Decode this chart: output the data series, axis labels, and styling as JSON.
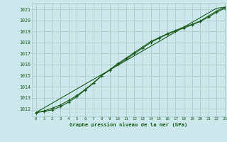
{
  "title": "Graphe pression niveau de la mer (hPa)",
  "xlim": [
    -0.5,
    23
  ],
  "ylim": [
    1011.3,
    1021.6
  ],
  "xticks": [
    0,
    1,
    2,
    3,
    4,
    5,
    6,
    7,
    8,
    9,
    10,
    11,
    12,
    13,
    14,
    15,
    16,
    17,
    18,
    19,
    20,
    21,
    22,
    23
  ],
  "yticks": [
    1012,
    1013,
    1014,
    1015,
    1016,
    1017,
    1018,
    1019,
    1020,
    1021
  ],
  "background_color": "#cce8ec",
  "grid_color": "#aacccc",
  "line_color": "#1a5c1a",
  "series_linear": [
    1011.65,
    1012.08,
    1012.51,
    1012.94,
    1013.37,
    1013.8,
    1014.23,
    1014.66,
    1015.09,
    1015.52,
    1015.95,
    1016.38,
    1016.81,
    1017.24,
    1017.67,
    1018.1,
    1018.53,
    1018.96,
    1019.39,
    1019.82,
    1020.25,
    1020.68,
    1021.11,
    1021.2
  ],
  "series_curve1": [
    1011.65,
    1011.75,
    1011.9,
    1012.2,
    1012.6,
    1013.1,
    1013.7,
    1014.3,
    1015.0,
    1015.5,
    1016.0,
    1016.5,
    1017.0,
    1017.5,
    1018.0,
    1018.4,
    1018.75,
    1019.05,
    1019.3,
    1019.6,
    1019.9,
    1020.3,
    1020.75,
    1021.1
  ],
  "series_curve2": [
    1011.65,
    1011.8,
    1012.05,
    1012.35,
    1012.75,
    1013.2,
    1013.75,
    1014.35,
    1015.0,
    1015.55,
    1016.1,
    1016.6,
    1017.1,
    1017.6,
    1018.1,
    1018.45,
    1018.8,
    1019.1,
    1019.4,
    1019.65,
    1019.95,
    1020.4,
    1020.85,
    1021.2
  ]
}
